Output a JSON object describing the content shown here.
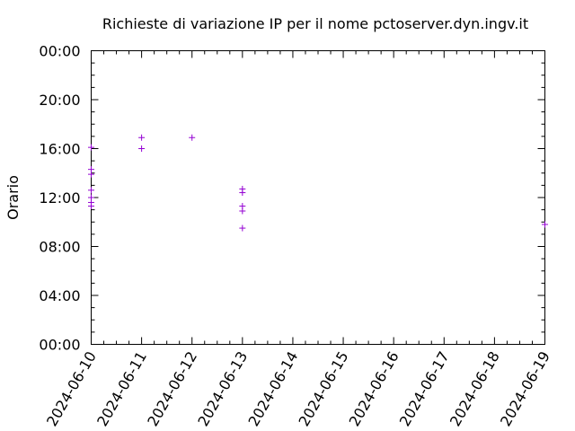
{
  "chart_data": {
    "type": "scatter",
    "title": "Richieste di variazione IP per il nome pctoserver.dyn.ingv.it",
    "xlabel": "",
    "ylabel": "Orario",
    "x_ticks": [
      "2024-06-10",
      "2024-06-11",
      "2024-06-12",
      "2024-06-13",
      "2024-06-14",
      "2024-06-15",
      "2024-06-16",
      "2024-06-17",
      "2024-06-18",
      "2024-06-19"
    ],
    "y_ticks": [
      "00:00",
      "04:00",
      "08:00",
      "12:00",
      "16:00",
      "20:00",
      "00:00"
    ],
    "xlim": [
      "2024-06-10",
      "2024-06-19"
    ],
    "ylim_hours": [
      0,
      24
    ],
    "grid": false,
    "marker": "+",
    "color": "#9400d3",
    "series": [
      {
        "points": [
          {
            "x": "2024-06-10",
            "y": 16.1
          },
          {
            "x": "2024-06-10",
            "y": 14.3
          },
          {
            "x": "2024-06-10",
            "y": 13.9
          },
          {
            "x": "2024-06-10",
            "y": 12.6
          },
          {
            "x": "2024-06-10",
            "y": 12.0
          },
          {
            "x": "2024-06-10",
            "y": 11.6
          },
          {
            "x": "2024-06-10",
            "y": 11.3
          },
          {
            "x": "2024-06-11",
            "y": 16.9
          },
          {
            "x": "2024-06-11",
            "y": 16.0
          },
          {
            "x": "2024-06-12",
            "y": 16.9
          },
          {
            "x": "2024-06-13",
            "y": 12.7
          },
          {
            "x": "2024-06-13",
            "y": 12.4
          },
          {
            "x": "2024-06-13",
            "y": 11.3
          },
          {
            "x": "2024-06-13",
            "y": 10.9
          },
          {
            "x": "2024-06-13",
            "y": 9.5
          },
          {
            "x": "2024-06-19",
            "y": 9.8
          }
        ]
      }
    ]
  }
}
